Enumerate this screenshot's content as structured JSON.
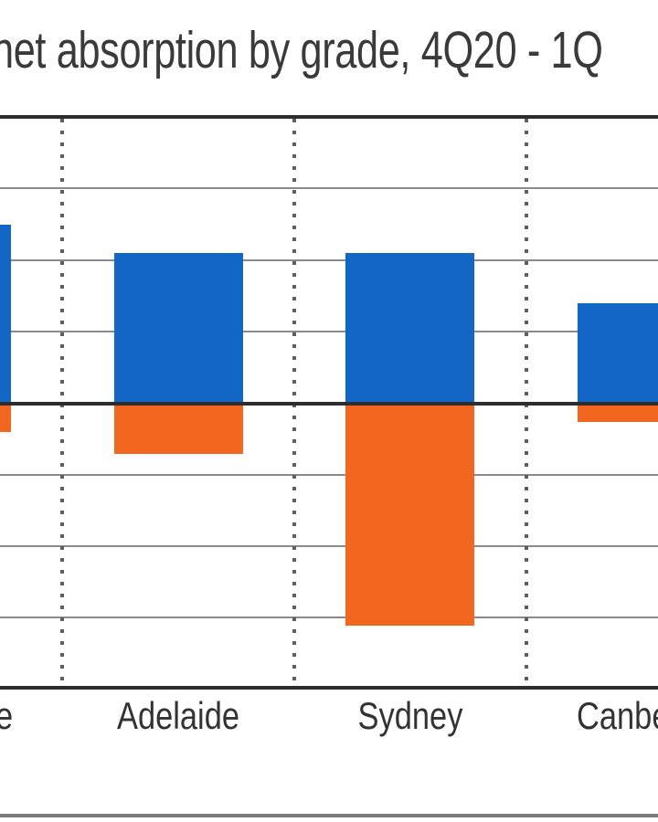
{
  "title": {
    "visible_text": "net absorption by grade, 4Q20 - 1Q"
  },
  "chart_data": {
    "type": "bar",
    "title": "net absorption by grade, 4Q20 - 1Q",
    "categories": [
      "e",
      "Adelaide",
      "Sydney",
      "Canbe"
    ],
    "series": [
      {
        "name": "blue",
        "color": "#1267C6",
        "values": [
          2.5,
          2.1,
          2.1,
          1.4
        ]
      },
      {
        "name": "orange",
        "color": "#F2661F",
        "values": [
          -0.4,
          -0.7,
          -3.1,
          -0.26
        ]
      }
    ],
    "ylim": [
      -4,
      4
    ],
    "y_tick_labels_visible": false,
    "legend_visible": false,
    "grid": {
      "horizontal": "solid gray, 1 unit apart",
      "vertical": "dotted category separators"
    },
    "baseline": "dark zero line drawn over bars"
  },
  "colors": {
    "bar_blue": "#1267C6",
    "bar_orange": "#F2661F",
    "axis_dark": "#2D2D2D",
    "gridline_gray": "#8A8A8A",
    "dotted_gray": "#5F5F5F",
    "text": "#3A3A3A",
    "background": "#FFFFFF",
    "footer_divider": "#7B7B7B"
  }
}
